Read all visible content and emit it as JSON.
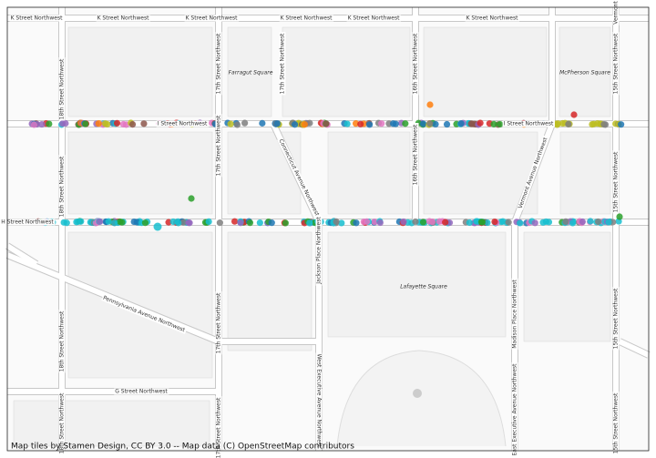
{
  "map": {
    "labels": [
      "K Street Northwest",
      "K Street Northwest",
      "K Street Northwest",
      "K Street Northwest",
      "K Street Northwest",
      "K Street Northwest",
      "Vermont",
      "Farragut Square",
      "McPherson Square",
      "18th Street Northwest",
      "17th Street Northwest",
      "17th Street Northwest",
      "16th Street Northwest",
      "15th Street Northwest",
      "I Street Northwest",
      "I Street Northwest",
      "Connecticut Avenue Northwest",
      "Vermont Avenue Northwest",
      "18th Street Northwest",
      "17th Street Northwest",
      "16th Street Northwest",
      "15th Street Northwest",
      "H Street Northwest",
      "Jackson Place Northwest",
      "Lafayette Square",
      "Madison Place Northwest",
      "Pennsylvania Avenue Northwest",
      "18th Street Northwest",
      "17th Street Northwest",
      "15th Street Northwest",
      "G Street Northwest",
      "West Executive Avenue Northwest",
      "East Executive Avenue Northwest",
      "18th Street Northwest",
      "17th Street Northwest",
      "15th Street Northwest"
    ],
    "attribution": "Map tiles by Stamen Design, CC BY 3.0 -- Map data (C) OpenStreetMap contributors"
  }
}
